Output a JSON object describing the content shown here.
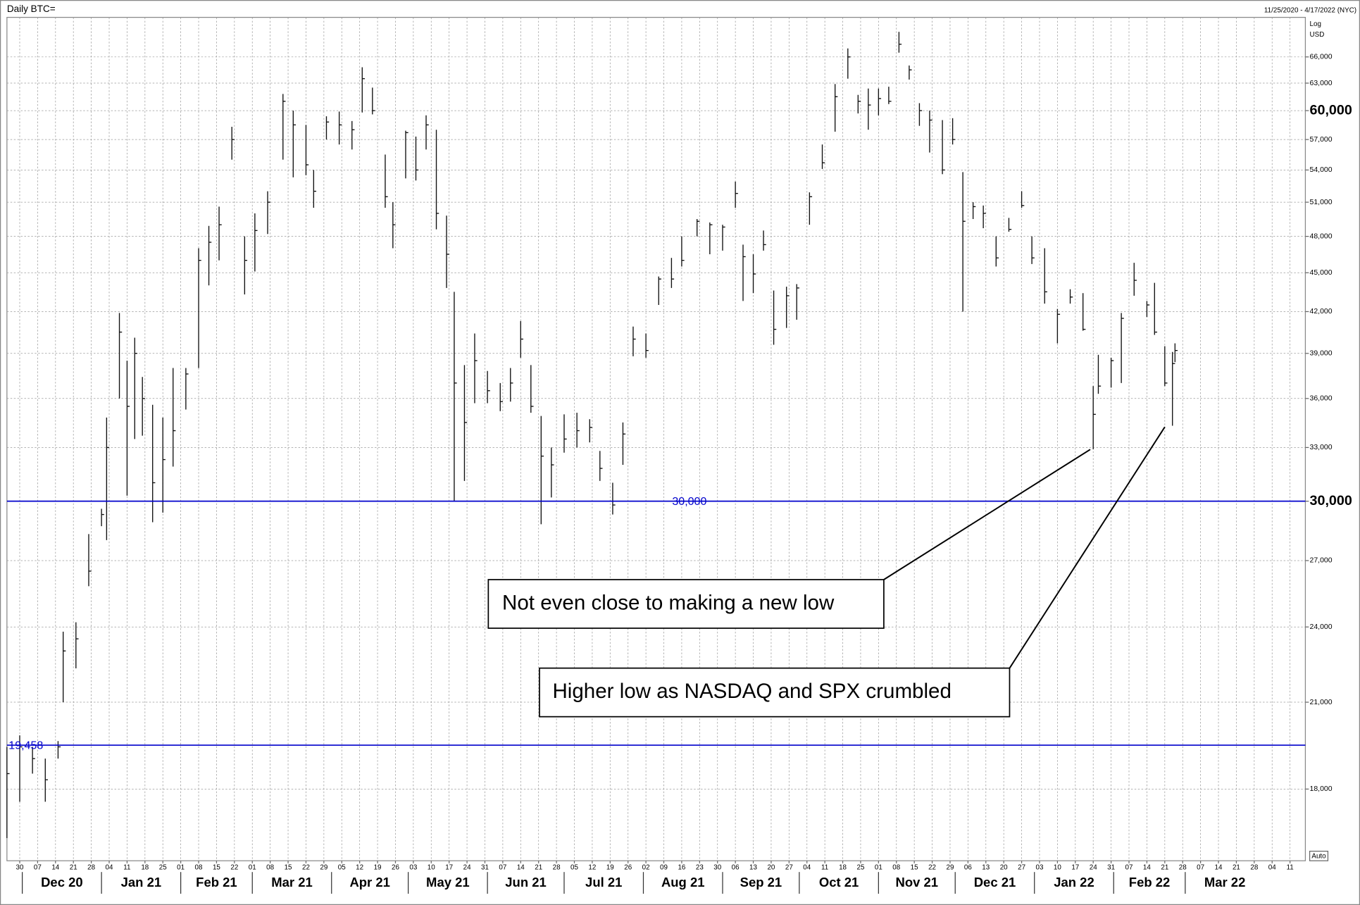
{
  "chart_data": {
    "type": "ohlc",
    "title": "Daily BTC=",
    "date_range": "11/25/2020 - 4/17/2022 (NYC)",
    "scale_label": "Log",
    "unit_label": "USD",
    "auto_label": "Auto",
    "log_scale": true,
    "grid": true,
    "color": "#111111",
    "xlim": [
      "2020-11-25",
      "2022-04-17"
    ],
    "ylim": [
      15850,
      70800
    ],
    "yticks": [
      {
        "value": 18000,
        "label": "18,000"
      },
      {
        "value": 21000,
        "label": "21,000"
      },
      {
        "value": 24000,
        "label": "24,000"
      },
      {
        "value": 27000,
        "label": "27,000"
      },
      {
        "value": 30000,
        "label": "30,000",
        "bold": true
      },
      {
        "value": 33000,
        "label": "33,000"
      },
      {
        "value": 36000,
        "label": "36,000"
      },
      {
        "value": 39000,
        "label": "39,000"
      },
      {
        "value": 42000,
        "label": "42,000"
      },
      {
        "value": 45000,
        "label": "45,000"
      },
      {
        "value": 48000,
        "label": "48,000"
      },
      {
        "value": 51000,
        "label": "51,000"
      },
      {
        "value": 54000,
        "label": "54,000"
      },
      {
        "value": 57000,
        "label": "57,000"
      },
      {
        "value": 60000,
        "label": "60,000",
        "bold": true
      },
      {
        "value": 63000,
        "label": "63,000"
      },
      {
        "value": 66000,
        "label": "66,000"
      }
    ],
    "xticks": [
      {
        "value": "2020-11-30",
        "label": "30"
      },
      {
        "value": "2020-12-07",
        "label": "07"
      },
      {
        "value": "2020-12-14",
        "label": "14"
      },
      {
        "value": "2020-12-21",
        "label": "21"
      },
      {
        "value": "2020-12-28",
        "label": "28"
      },
      {
        "value": "2021-01-04",
        "label": "04"
      },
      {
        "value": "2021-01-11",
        "label": "11"
      },
      {
        "value": "2021-01-18",
        "label": "18"
      },
      {
        "value": "2021-01-25",
        "label": "25"
      },
      {
        "value": "2021-02-01",
        "label": "01"
      },
      {
        "value": "2021-02-08",
        "label": "08"
      },
      {
        "value": "2021-02-15",
        "label": "15"
      },
      {
        "value": "2021-02-22",
        "label": "22"
      },
      {
        "value": "2021-03-01",
        "label": "01"
      },
      {
        "value": "2021-03-08",
        "label": "08"
      },
      {
        "value": "2021-03-15",
        "label": "15"
      },
      {
        "value": "2021-03-22",
        "label": "22"
      },
      {
        "value": "2021-03-29",
        "label": "29"
      },
      {
        "value": "2021-04-05",
        "label": "05"
      },
      {
        "value": "2021-04-12",
        "label": "12"
      },
      {
        "value": "2021-04-19",
        "label": "19"
      },
      {
        "value": "2021-04-26",
        "label": "26"
      },
      {
        "value": "2021-05-03",
        "label": "03"
      },
      {
        "value": "2021-05-10",
        "label": "10"
      },
      {
        "value": "2021-05-17",
        "label": "17"
      },
      {
        "value": "2021-05-24",
        "label": "24"
      },
      {
        "value": "2021-05-31",
        "label": "31"
      },
      {
        "value": "2021-06-07",
        "label": "07"
      },
      {
        "value": "2021-06-14",
        "label": "14"
      },
      {
        "value": "2021-06-21",
        "label": "21"
      },
      {
        "value": "2021-06-28",
        "label": "28"
      },
      {
        "value": "2021-07-05",
        "label": "05"
      },
      {
        "value": "2021-07-12",
        "label": "12"
      },
      {
        "value": "2021-07-19",
        "label": "19"
      },
      {
        "value": "2021-07-26",
        "label": "26"
      },
      {
        "value": "2021-08-02",
        "label": "02"
      },
      {
        "value": "2021-08-09",
        "label": "09"
      },
      {
        "value": "2021-08-16",
        "label": "16"
      },
      {
        "value": "2021-08-23",
        "label": "23"
      },
      {
        "value": "2021-08-30",
        "label": "30"
      },
      {
        "value": "2021-09-06",
        "label": "06"
      },
      {
        "value": "2021-09-13",
        "label": "13"
      },
      {
        "value": "2021-09-20",
        "label": "20"
      },
      {
        "value": "2021-09-27",
        "label": "27"
      },
      {
        "value": "2021-10-04",
        "label": "04"
      },
      {
        "value": "2021-10-11",
        "label": "11"
      },
      {
        "value": "2021-10-18",
        "label": "18"
      },
      {
        "value": "2021-10-25",
        "label": "25"
      },
      {
        "value": "2021-11-01",
        "label": "01"
      },
      {
        "value": "2021-11-08",
        "label": "08"
      },
      {
        "value": "2021-11-15",
        "label": "15"
      },
      {
        "value": "2021-11-22",
        "label": "22"
      },
      {
        "value": "2021-11-29",
        "label": "29"
      },
      {
        "value": "2021-12-06",
        "label": "06"
      },
      {
        "value": "2021-12-13",
        "label": "13"
      },
      {
        "value": "2021-12-20",
        "label": "20"
      },
      {
        "value": "2021-12-27",
        "label": "27"
      },
      {
        "value": "2022-01-03",
        "label": "03"
      },
      {
        "value": "2022-01-10",
        "label": "10"
      },
      {
        "value": "2022-01-17",
        "label": "17"
      },
      {
        "value": "2022-01-24",
        "label": "24"
      },
      {
        "value": "2022-01-31",
        "label": "31"
      },
      {
        "value": "2022-02-07",
        "label": "07"
      },
      {
        "value": "2022-02-14",
        "label": "14"
      },
      {
        "value": "2022-02-21",
        "label": "21"
      },
      {
        "value": "2022-02-28",
        "label": "28"
      },
      {
        "value": "2022-03-07",
        "label": "07"
      },
      {
        "value": "2022-03-14",
        "label": "14"
      },
      {
        "value": "2022-03-21",
        "label": "21"
      },
      {
        "value": "2022-03-28",
        "label": "28"
      },
      {
        "value": "2022-04-04",
        "label": "04"
      },
      {
        "value": "2022-04-11",
        "label": "11"
      }
    ],
    "months": [
      {
        "value": "2020-12",
        "label": "Dec 20"
      },
      {
        "value": "2021-01",
        "label": "Jan 21"
      },
      {
        "value": "2021-02",
        "label": "Feb 21"
      },
      {
        "value": "2021-03",
        "label": "Mar 21"
      },
      {
        "value": "2021-04",
        "label": "Apr 21"
      },
      {
        "value": "2021-05",
        "label": "May 21"
      },
      {
        "value": "2021-06",
        "label": "Jun 21"
      },
      {
        "value": "2021-07",
        "label": "Jul 21"
      },
      {
        "value": "2021-08",
        "label": "Aug 21"
      },
      {
        "value": "2021-09",
        "label": "Sep 21"
      },
      {
        "value": "2021-10",
        "label": "Oct 21"
      },
      {
        "value": "2021-11",
        "label": "Nov 21"
      },
      {
        "value": "2021-12",
        "label": "Dec 21"
      },
      {
        "value": "2022-01",
        "label": "Jan 22"
      },
      {
        "value": "2022-02",
        "label": "Feb 22"
      },
      {
        "value": "2022-03",
        "label": "Mar 22"
      }
    ],
    "levels": [
      {
        "value": 30000,
        "label": "30,000",
        "color": "#0000cc"
      },
      {
        "value": 19458,
        "label": "19,458",
        "color": "#0000cc"
      }
    ],
    "annotations": [
      "Not even close to making a new low",
      "Higher low as NASDAQ and SPX crumbled"
    ],
    "bars": {
      "x": [
        "2020-11-25",
        "2020-11-30",
        "2020-12-05",
        "2020-12-10",
        "2020-12-15",
        "2020-12-17",
        "2020-12-22",
        "2020-12-27",
        "2021-01-01",
        "2021-01-03",
        "2021-01-08",
        "2021-01-11",
        "2021-01-14",
        "2021-01-17",
        "2021-01-21",
        "2021-01-25",
        "2021-01-29",
        "2021-02-03",
        "2021-02-08",
        "2021-02-12",
        "2021-02-16",
        "2021-02-21",
        "2021-02-26",
        "2021-03-02",
        "2021-03-07",
        "2021-03-13",
        "2021-03-17",
        "2021-03-22",
        "2021-03-25",
        "2021-03-30",
        "2021-04-04",
        "2021-04-09",
        "2021-04-13",
        "2021-04-17",
        "2021-04-22",
        "2021-04-25",
        "2021-04-30",
        "2021-05-04",
        "2021-05-08",
        "2021-05-12",
        "2021-05-16",
        "2021-05-19",
        "2021-05-23",
        "2021-05-27",
        "2021-06-01",
        "2021-06-06",
        "2021-06-10",
        "2021-06-14",
        "2021-06-18",
        "2021-06-22",
        "2021-06-26",
        "2021-07-01",
        "2021-07-06",
        "2021-07-11",
        "2021-07-15",
        "2021-07-20",
        "2021-07-24",
        "2021-07-28",
        "2021-08-02",
        "2021-08-07",
        "2021-08-12",
        "2021-08-16",
        "2021-08-22",
        "2021-08-27",
        "2021-09-01",
        "2021-09-06",
        "2021-09-09",
        "2021-09-13",
        "2021-09-17",
        "2021-09-21",
        "2021-09-26",
        "2021-09-30",
        "2021-10-05",
        "2021-10-10",
        "2021-10-15",
        "2021-10-20",
        "2021-10-24",
        "2021-10-28",
        "2021-11-01",
        "2021-11-05",
        "2021-11-09",
        "2021-11-13",
        "2021-11-17",
        "2021-11-21",
        "2021-11-26",
        "2021-11-30",
        "2021-12-04",
        "2021-12-08",
        "2021-12-12",
        "2021-12-17",
        "2021-12-22",
        "2021-12-27",
        "2021-12-31",
        "2022-01-05",
        "2022-01-10",
        "2022-01-15",
        "2022-01-20",
        "2022-01-24",
        "2022-01-26",
        "2022-01-31",
        "2022-02-04",
        "2022-02-09",
        "2022-02-14",
        "2022-02-17",
        "2022-02-21",
        "2022-02-24",
        "2022-02-25"
      ],
      "high": [
        19400,
        19800,
        19400,
        19000,
        19600,
        23800,
        24200,
        28300,
        29600,
        34800,
        41900,
        38500,
        40100,
        37400,
        35600,
        34800,
        38000,
        38000,
        47000,
        48900,
        50600,
        58300,
        48000,
        50000,
        52000,
        61800,
        60000,
        58500,
        54000,
        59400,
        59900,
        58900,
        64800,
        62500,
        55500,
        51000,
        57900,
        57300,
        59500,
        58000,
        49800,
        43500,
        38200,
        40400,
        37800,
        37000,
        38000,
        41300,
        38200,
        34900,
        33000,
        35000,
        35100,
        34700,
        32800,
        31000,
        34500,
        40900,
        40400,
        44700,
        46200,
        48000,
        49500,
        49200,
        49000,
        52900,
        47300,
        46500,
        48500,
        43600,
        43900,
        44100,
        51900,
        56500,
        62900,
        67000,
        61700,
        62400,
        62400,
        62600,
        69000,
        65000,
        60800,
        60000,
        59000,
        59200,
        53800,
        51000,
        50700,
        48000,
        49600,
        52000,
        48000,
        47000,
        42200,
        43700,
        43400,
        36800,
        38900,
        38700,
        41900,
        45800,
        42800,
        44200,
        39500,
        39100,
        39700
      ],
      "low": [
        16500,
        17600,
        18500,
        17600,
        19000,
        21000,
        22300,
        25800,
        28700,
        28000,
        36000,
        30300,
        33500,
        33700,
        28900,
        29400,
        31900,
        35300,
        38000,
        44000,
        46000,
        55000,
        43300,
        45100,
        48200,
        55000,
        53300,
        53500,
        50500,
        57000,
        56500,
        56000,
        59800,
        59600,
        50500,
        47000,
        53200,
        53000,
        56000,
        48600,
        43800,
        30000,
        31100,
        35700,
        35700,
        35200,
        35800,
        38700,
        35100,
        28800,
        30200,
        32700,
        33000,
        33300,
        31100,
        29300,
        32000,
        38800,
        38700,
        42500,
        43800,
        45500,
        48000,
        46500,
        46800,
        50500,
        42800,
        43400,
        46800,
        39600,
        40800,
        41400,
        49000,
        54100,
        57800,
        63500,
        59700,
        58000,
        59500,
        60700,
        66500,
        63400,
        58400,
        55700,
        53600,
        56500,
        42000,
        49500,
        48700,
        45500,
        48400,
        50500,
        45700,
        42600,
        39700,
        42600,
        40600,
        32900,
        36300,
        36700,
        37000,
        43200,
        41600,
        40300,
        36800,
        34300,
        38400
      ],
      "close": [
        18500,
        19400,
        19000,
        18300,
        19400,
        23000,
        23500,
        26500,
        29300,
        33000,
        40500,
        35500,
        39000,
        36000,
        31000,
        32300,
        34000,
        37600,
        46000,
        47500,
        49000,
        57000,
        46000,
        48500,
        51000,
        61000,
        58500,
        54500,
        52000,
        58800,
        58500,
        58000,
        63500,
        60000,
        51500,
        49000,
        57700,
        54000,
        58500,
        50000,
        46500,
        37000,
        34500,
        38500,
        36500,
        35800,
        37000,
        40000,
        35500,
        32500,
        32000,
        33500,
        34000,
        34200,
        31800,
        29800,
        33800,
        40000,
        39200,
        44500,
        44500,
        46000,
        49300,
        49000,
        48800,
        51800,
        46300,
        44900,
        47300,
        40700,
        43200,
        43800,
        51500,
        54700,
        61500,
        66000,
        61000,
        60600,
        61300,
        61000,
        67500,
        64500,
        60000,
        59000,
        54000,
        57000,
        49300,
        50600,
        50000,
        46200,
        48600,
        50700,
        46200,
        43500,
        41800,
        43100,
        40700,
        35000,
        36800,
        38500,
        41500,
        44400,
        42500,
        40500,
        37000,
        38300,
        39200
      ]
    }
  }
}
